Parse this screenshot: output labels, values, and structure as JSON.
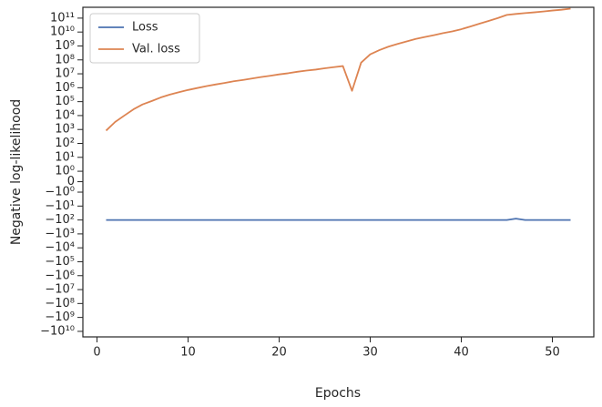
{
  "chart_data": {
    "type": "line",
    "x_label": "Epochs",
    "y_label": "Negative log-likelihood",
    "yscale": "symlog",
    "linthresh": 1,
    "legend": "upper left",
    "x": [
      1,
      2,
      3,
      4,
      5,
      6,
      7,
      8,
      9,
      10,
      11,
      12,
      13,
      14,
      15,
      16,
      17,
      18,
      19,
      20,
      21,
      22,
      23,
      24,
      25,
      26,
      27,
      28,
      29,
      30,
      31,
      32,
      33,
      34,
      35,
      36,
      37,
      38,
      39,
      40,
      41,
      42,
      43,
      44,
      45,
      46,
      47,
      48,
      49,
      50,
      51,
      52
    ],
    "series": [
      {
        "name": "Loss",
        "color": "#4c72b0",
        "values": [
          -100,
          -100,
          -100,
          -100,
          -100,
          -100,
          -100,
          -100,
          -100,
          -100,
          -100,
          -100,
          -100,
          -100,
          -100,
          -100,
          -100,
          -100,
          -100,
          -100,
          -100,
          -100,
          -100,
          -100,
          -100,
          -100,
          -100,
          -100,
          -100,
          -100,
          -100,
          -100,
          -100,
          -100,
          -100,
          -100,
          -100,
          -100,
          -100,
          -100,
          -100,
          -100,
          -100,
          -100,
          -100,
          -80,
          -100,
          -100,
          -100,
          -100,
          -100,
          -100
        ]
      },
      {
        "name": "Val. loss",
        "color": "#dd8452",
        "values": [
          830,
          3500,
          10000,
          28000,
          63000,
          110000,
          200000,
          320000,
          480000,
          690000,
          950000,
          1300000,
          1700000,
          2200000,
          2900000,
          3600000,
          4600000,
          5800000,
          7200000,
          9100000,
          11000000,
          14000000,
          17000000,
          20000000,
          25000000,
          30000000,
          36000000,
          600000,
          63000000,
          250000000,
          500000000,
          890000000,
          1400000000,
          2100000000,
          3200000000,
          4400000000,
          6000000000,
          8300000000,
          11000000000,
          16000000000,
          25000000000,
          40000000000,
          63000000000,
          100000000000,
          170000000000,
          200000000000,
          230000000000,
          260000000000,
          300000000000,
          350000000000,
          400000000000,
          480000000000
        ]
      }
    ],
    "xlim": [
      -1.55,
      54.55
    ],
    "xticks": [
      0,
      10,
      20,
      30,
      40,
      50
    ],
    "ylim": [
      -25000000000,
      600000000000
    ],
    "yticks": [
      {
        "value": 100000000000,
        "label": "10¹¹"
      },
      {
        "value": 10000000000,
        "label": "10¹⁰"
      },
      {
        "value": 1000000000,
        "label": "10⁹"
      },
      {
        "value": 100000000,
        "label": "10⁸"
      },
      {
        "value": 10000000,
        "label": "10⁷"
      },
      {
        "value": 1000000,
        "label": "10⁶"
      },
      {
        "value": 100000,
        "label": "10⁵"
      },
      {
        "value": 10000,
        "label": "10⁴"
      },
      {
        "value": 1000,
        "label": "10³"
      },
      {
        "value": 100,
        "label": "10²"
      },
      {
        "value": 10,
        "label": "10¹"
      },
      {
        "value": 1,
        "label": "10⁰"
      },
      0,
      {
        "value": -1,
        "label": "−10⁰"
      },
      {
        "value": -10,
        "label": "−10¹"
      },
      {
        "value": -100,
        "label": "−10²"
      },
      {
        "value": -1000,
        "label": "−10³"
      },
      {
        "value": -10000,
        "label": "−10⁴"
      },
      {
        "value": -100000,
        "label": "−10⁵"
      },
      {
        "value": -1000000,
        "label": "−10⁶"
      },
      {
        "value": -10000000,
        "label": "−10⁷"
      },
      {
        "value": -100000000,
        "label": "−10⁸"
      },
      {
        "value": -1000000000,
        "label": "−10⁹"
      },
      {
        "value": -10000000000,
        "label": "−10¹⁰"
      }
    ]
  }
}
